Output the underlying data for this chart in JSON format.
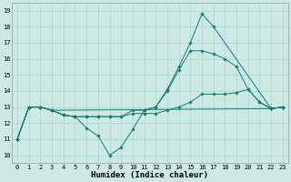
{
  "bg_color": "#cce9e6",
  "grid_color": "#aad5d0",
  "line_color": "#1a7a6e",
  "xlabel": "Humidex (Indice chaleur)",
  "xlim": [
    -0.5,
    23.5
  ],
  "ylim": [
    9.5,
    19.5
  ],
  "xticks": [
    0,
    1,
    2,
    3,
    4,
    5,
    6,
    7,
    8,
    9,
    10,
    11,
    12,
    13,
    14,
    15,
    16,
    17,
    18,
    19,
    20,
    21,
    22,
    23
  ],
  "yticks": [
    10,
    11,
    12,
    13,
    14,
    15,
    16,
    17,
    18,
    19
  ],
  "lines": [
    {
      "x": [
        0,
        1,
        2,
        3,
        4,
        5,
        6,
        7,
        8,
        9,
        10,
        11,
        12,
        13,
        14,
        15,
        16,
        17,
        22,
        23
      ],
      "y": [
        11,
        13,
        13,
        12.8,
        12.5,
        12.4,
        11.7,
        11.2,
        10,
        10.5,
        11.6,
        12.8,
        13,
        14.1,
        15.5,
        17,
        18.8,
        18,
        12.9,
        13
      ]
    },
    {
      "x": [
        0,
        1,
        2,
        3,
        4,
        5,
        6,
        7,
        8,
        9,
        10,
        11,
        12,
        13,
        14,
        15,
        16,
        17,
        18,
        19,
        20,
        21,
        22,
        23
      ],
      "y": [
        11,
        13,
        13,
        12.8,
        12.5,
        12.4,
        12.4,
        12.4,
        12.4,
        12.4,
        12.8,
        12.8,
        13,
        14,
        15.3,
        16.5,
        16.5,
        16.3,
        16,
        15.5,
        14.1,
        13.3,
        12.9,
        13
      ]
    },
    {
      "x": [
        0,
        1,
        2,
        3,
        22,
        23
      ],
      "y": [
        11,
        13,
        13,
        12.8,
        12.9,
        13
      ]
    },
    {
      "x": [
        0,
        1,
        2,
        3,
        4,
        5,
        6,
        7,
        8,
        9,
        10,
        11,
        12,
        13,
        14,
        15,
        16,
        17,
        18,
        19,
        20,
        21,
        22,
        23
      ],
      "y": [
        11,
        13,
        13,
        12.8,
        12.5,
        12.4,
        12.4,
        12.4,
        12.4,
        12.4,
        12.6,
        12.6,
        12.6,
        12.8,
        13,
        13.3,
        13.8,
        13.8,
        13.8,
        13.9,
        14.1,
        13.3,
        12.9,
        13
      ]
    }
  ]
}
